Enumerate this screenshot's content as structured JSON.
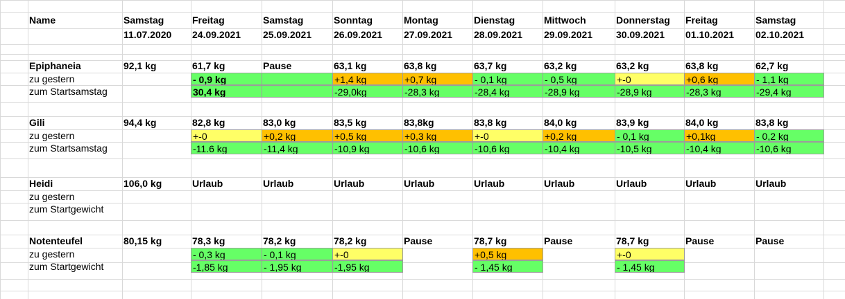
{
  "colors": {
    "green": "#66ff66",
    "orange": "#ffc000",
    "yellow": "#ffff66",
    "grid": "#d9d9d9"
  },
  "header": {
    "name": "Name",
    "days": [
      "Samstag",
      "Freitag",
      "Samstag",
      "Sonntag",
      "Montag",
      "Dienstag",
      "Mittwoch",
      "Donnerstag",
      "Freitag",
      "Samstag"
    ],
    "dates": [
      "11.07.2020",
      "24.09.2021",
      "25.09.2021",
      "26.09.2021",
      "27.09.2021",
      "28.09.2021",
      "29.09.2021",
      "30.09.2021",
      "01.10.2021",
      "02.10.2021"
    ]
  },
  "people": [
    {
      "name": "Epiphaneia",
      "weights": [
        "92,1 kg",
        "61,7 kg",
        "Pause",
        "63,1 kg",
        "63,8 kg",
        "63,7 kg",
        "63,2 kg",
        "63,2 kg",
        "63,8 kg",
        "62,7 kg"
      ],
      "diff_label": "zu gestern",
      "diff": [
        {
          "v": "",
          "c": ""
        },
        {
          "v": "- 0,9 kg",
          "c": "green",
          "bold": true
        },
        {
          "v": "",
          "c": "green"
        },
        {
          "v": "+1,4 kg",
          "c": "orange"
        },
        {
          "v": "+0,7 kg",
          "c": "orange"
        },
        {
          "v": "- 0,1 kg",
          "c": "green"
        },
        {
          "v": "- 0,5 kg",
          "c": "green"
        },
        {
          "v": "+-0",
          "c": "yellow"
        },
        {
          "v": "+0,6 kg",
          "c": "orange"
        },
        {
          "v": "- 1,1 kg",
          "c": "green"
        }
      ],
      "start_label": "zum Startsamstag",
      "start": [
        {
          "v": "",
          "c": ""
        },
        {
          "v": "30,4 kg",
          "c": "green",
          "bold": true
        },
        {
          "v": "",
          "c": "green"
        },
        {
          "v": "-29,0kg",
          "c": "green"
        },
        {
          "v": "-28,3 kg",
          "c": "green"
        },
        {
          "v": "-28,4 kg",
          "c": "green"
        },
        {
          "v": "-28,9 kg",
          "c": "green"
        },
        {
          "v": "-28,9 kg",
          "c": "green"
        },
        {
          "v": "-28,3 kg",
          "c": "green"
        },
        {
          "v": "-29,4 kg",
          "c": "green"
        }
      ]
    },
    {
      "name": "Gili",
      "weights": [
        "94,4 kg",
        "82,8 kg",
        "83,0 kg",
        "83,5 kg",
        "83,8kg",
        "83,8 kg",
        "84,0 kg",
        "83,9 kg",
        "84,0 kg",
        "83,8 kg"
      ],
      "diff_label": "zu gestern",
      "diff": [
        {
          "v": "",
          "c": ""
        },
        {
          "v": "+-0",
          "c": "yellow"
        },
        {
          "v": "+0,2 kg",
          "c": "orange"
        },
        {
          "v": "+0,5 kg",
          "c": "orange"
        },
        {
          "v": "+0,3 kg",
          "c": "orange"
        },
        {
          "v": "+-0",
          "c": "yellow"
        },
        {
          "v": "+0,2 kg",
          "c": "orange"
        },
        {
          "v": "- 0,1 kg",
          "c": "green"
        },
        {
          "v": "+0,1kg",
          "c": "orange"
        },
        {
          "v": "- 0,2 kg",
          "c": "green"
        }
      ],
      "start_label": "zum Startsamstag",
      "start": [
        {
          "v": "",
          "c": ""
        },
        {
          "v": "-11.6 kg",
          "c": "green"
        },
        {
          "v": "-11,4 kg",
          "c": "green"
        },
        {
          "v": "-10,9 kg",
          "c": "green"
        },
        {
          "v": "-10,6 kg",
          "c": "green"
        },
        {
          "v": "-10,6 kg",
          "c": "green"
        },
        {
          "v": "-10,4 kg",
          "c": "green"
        },
        {
          "v": "-10,5 kg",
          "c": "green"
        },
        {
          "v": "-10,4 kg",
          "c": "green"
        },
        {
          "v": "-10,6 kg",
          "c": "green"
        }
      ]
    },
    {
      "name": "Heidi",
      "weights": [
        "106,0 kg",
        "Urlaub",
        "Urlaub",
        "Urlaub",
        "Urlaub",
        "Urlaub",
        "Urlaub",
        "Urlaub",
        "Urlaub",
        "Urlaub"
      ],
      "diff_label": "zu gestern",
      "diff": [
        {
          "v": "",
          "c": ""
        },
        {
          "v": "",
          "c": ""
        },
        {
          "v": "",
          "c": ""
        },
        {
          "v": "",
          "c": ""
        },
        {
          "v": "",
          "c": ""
        },
        {
          "v": "",
          "c": ""
        },
        {
          "v": "",
          "c": ""
        },
        {
          "v": "",
          "c": ""
        },
        {
          "v": "",
          "c": ""
        },
        {
          "v": "",
          "c": ""
        }
      ],
      "start_label": "zum Startgewicht",
      "start": [
        {
          "v": "",
          "c": ""
        },
        {
          "v": "",
          "c": ""
        },
        {
          "v": "",
          "c": ""
        },
        {
          "v": "",
          "c": ""
        },
        {
          "v": "",
          "c": ""
        },
        {
          "v": "",
          "c": ""
        },
        {
          "v": "",
          "c": ""
        },
        {
          "v": "",
          "c": ""
        },
        {
          "v": "",
          "c": ""
        },
        {
          "v": "",
          "c": ""
        }
      ]
    },
    {
      "name": "Notenteufel",
      "weights": [
        "80,15 kg",
        "78,3 kg",
        "78,2 kg",
        "78,2 kg",
        "Pause",
        "78,7 kg",
        "Pause",
        "78,7 kg",
        "Pause",
        "Pause"
      ],
      "diff_label": "zu gestern",
      "diff": [
        {
          "v": "",
          "c": ""
        },
        {
          "v": "- 0,3 kg",
          "c": "green"
        },
        {
          "v": "- 0,1 kg",
          "c": "green"
        },
        {
          "v": "+-0",
          "c": "yellow"
        },
        {
          "v": "",
          "c": ""
        },
        {
          "v": "+0,5 kg",
          "c": "orange"
        },
        {
          "v": "",
          "c": ""
        },
        {
          "v": "+-0",
          "c": "yellow"
        },
        {
          "v": "",
          "c": ""
        },
        {
          "v": "",
          "c": ""
        }
      ],
      "start_label": "zum Startgewicht",
      "start": [
        {
          "v": "",
          "c": ""
        },
        {
          "v": "-1,85 kg",
          "c": "green"
        },
        {
          "v": "- 1,95 kg",
          "c": "green"
        },
        {
          "v": "-1,95 kg",
          "c": "green"
        },
        {
          "v": "",
          "c": ""
        },
        {
          "v": "- 1,45 kg",
          "c": "green"
        },
        {
          "v": "",
          "c": ""
        },
        {
          "v": "- 1,45 kg",
          "c": "green"
        },
        {
          "v": "",
          "c": ""
        },
        {
          "v": "",
          "c": ""
        }
      ]
    }
  ]
}
